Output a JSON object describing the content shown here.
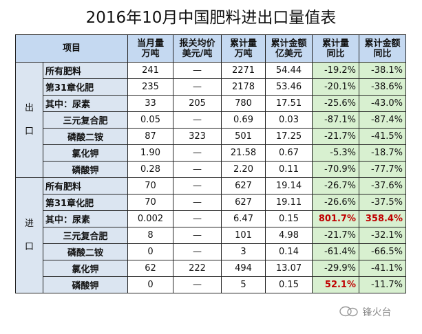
{
  "title": "2016年10月中国肥料进出口量值表",
  "headers": {
    "item": "项目",
    "c1a": "当月量",
    "c1b": "万吨",
    "c2a": "报关均价",
    "c2b": "美元/吨",
    "c3a": "累计量",
    "c3b": "万吨",
    "c4a": "累计金额",
    "c4b": "亿美元",
    "c5a": "累计量",
    "c5b": "同比",
    "c6a": "累计金额",
    "c6b": "同比"
  },
  "export_label": [
    "出",
    "口"
  ],
  "import_label": [
    "进",
    "口"
  ],
  "export_rows": [
    {
      "name": "所有肥料",
      "indent": false,
      "monthly": "241",
      "price": "—",
      "cum": "2271",
      "amount": "54.44",
      "cum_yoy": "-19.2%",
      "amt_yoy": "-38.1%",
      "cum_red": false,
      "amt_red": false
    },
    {
      "name": "第31章化肥",
      "indent": false,
      "monthly": "235",
      "price": "—",
      "cum": "2178",
      "amount": "53.46",
      "cum_yoy": "-20.1%",
      "amt_yoy": "-38.6%",
      "cum_red": false,
      "amt_red": false
    },
    {
      "name": "其中：尿素",
      "indent": false,
      "monthly": "33",
      "price": "205",
      "cum": "780",
      "amount": "17.51",
      "cum_yoy": "-25.6%",
      "amt_yoy": "-43.0%",
      "cum_red": false,
      "amt_red": false
    },
    {
      "name": "三元复合肥",
      "indent": true,
      "monthly": "0.05",
      "price": "—",
      "cum": "0.69",
      "amount": "0.03",
      "cum_yoy": "-87.1%",
      "amt_yoy": "-87.4%",
      "cum_red": false,
      "amt_red": false
    },
    {
      "name": "磷酸二铵",
      "indent": true,
      "monthly": "87",
      "price": "323",
      "cum": "501",
      "amount": "17.25",
      "cum_yoy": "-21.7%",
      "amt_yoy": "-41.5%",
      "cum_red": false,
      "amt_red": false
    },
    {
      "name": "氯化钾",
      "indent": true,
      "monthly": "1.90",
      "price": "—",
      "cum": "21.58",
      "amount": "0.67",
      "cum_yoy": "-5.3%",
      "amt_yoy": "-18.7%",
      "cum_red": false,
      "amt_red": false
    },
    {
      "name": "磷酸钾",
      "indent": true,
      "monthly": "0.28",
      "price": "—",
      "cum": "2.20",
      "amount": "0.11",
      "cum_yoy": "-70.9%",
      "amt_yoy": "-77.7%",
      "cum_red": false,
      "amt_red": false
    }
  ],
  "import_rows": [
    {
      "name": "所有肥料",
      "indent": false,
      "monthly": "70",
      "price": "—",
      "cum": "627",
      "amount": "19.14",
      "cum_yoy": "-26.7%",
      "amt_yoy": "-37.6%",
      "cum_red": false,
      "amt_red": false
    },
    {
      "name": "第31章化肥",
      "indent": false,
      "monthly": "70",
      "price": "—",
      "cum": "627",
      "amount": "19.11",
      "cum_yoy": "-26.6%",
      "amt_yoy": "-37.5%",
      "cum_red": false,
      "amt_red": false
    },
    {
      "name": "其中：尿素",
      "indent": false,
      "monthly": "0.002",
      "price": "—",
      "cum": "6.47",
      "amount": "0.15",
      "cum_yoy": "801.7%",
      "amt_yoy": "358.4%",
      "cum_red": true,
      "amt_red": true
    },
    {
      "name": "三元复合肥",
      "indent": true,
      "monthly": "8",
      "price": "—",
      "cum": "101",
      "amount": "4.98",
      "cum_yoy": "-21.7%",
      "amt_yoy": "-32.1%",
      "cum_red": false,
      "amt_red": false
    },
    {
      "name": "磷酸二铵",
      "indent": true,
      "monthly": "0",
      "price": "—",
      "cum": "3",
      "amount": "0.14",
      "cum_yoy": "-61.4%",
      "amt_yoy": "-66.5%",
      "cum_red": false,
      "amt_red": false
    },
    {
      "name": "氯化钾",
      "indent": true,
      "monthly": "62",
      "price": "222",
      "cum": "494",
      "amount": "13.07",
      "cum_yoy": "-29.9%",
      "amt_yoy": "-41.1%",
      "cum_red": false,
      "amt_red": false
    },
    {
      "name": "磷酸钾",
      "indent": true,
      "monthly": "0",
      "price": "—",
      "cum": "5",
      "amount": "0.15",
      "cum_yoy": "52.1%",
      "amt_yoy": "-11.7%",
      "cum_red": true,
      "amt_red": false
    }
  ],
  "watermark": "锋火台",
  "colors": {
    "header_bg": "#c5d9f1",
    "label_bg": "#dbe5f1",
    "pct_bg": "#d8f0d0",
    "red": "#c00000"
  }
}
